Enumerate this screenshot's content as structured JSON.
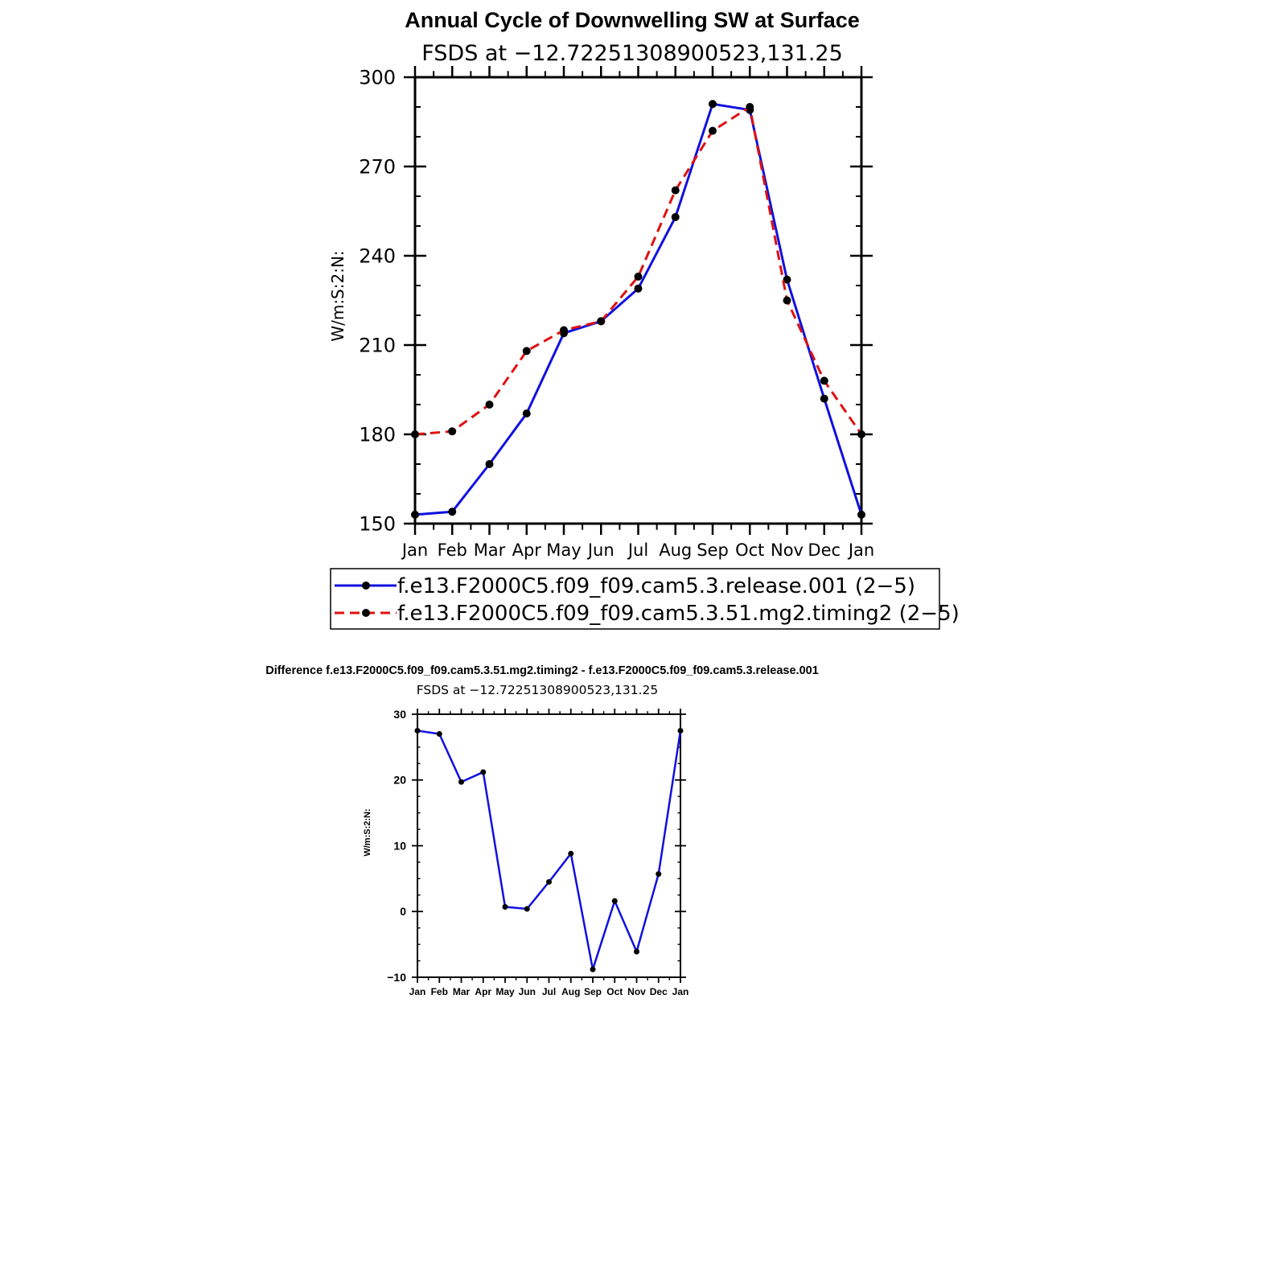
{
  "chart_data": [
    {
      "type": "line",
      "title": "Annual Cycle of Downwelling SW at Surface",
      "subtitle": "FSDS at −12.72251308900523,131.25",
      "xlabel": "",
      "ylabel": "W/m:S:2:N:",
      "categories": [
        "Jan",
        "Feb",
        "Mar",
        "Apr",
        "May",
        "Jun",
        "Jul",
        "Aug",
        "Sep",
        "Oct",
        "Nov",
        "Dec",
        "Jan"
      ],
      "ylim": [
        150,
        300
      ],
      "yticks": [
        "150",
        "180",
        "210",
        "240",
        "270",
        "300"
      ],
      "series": [
        {
          "name": "f.e13.F2000C5.f09_f09.cam5.3.release.001 (2−5)",
          "color": "#1010e0",
          "dash": "solid",
          "values": [
            153,
            154,
            170,
            187,
            214,
            218,
            229,
            253,
            291,
            289,
            232,
            192,
            153
          ]
        },
        {
          "name": "f.e13.F2000C5.f09_f09.cam5.3.51.mg2.timing2 (2−5)",
          "color": "#e01010",
          "dash": "dashed",
          "values": [
            180,
            181,
            190,
            208,
            215,
            218,
            233,
            262,
            282,
            290,
            225,
            198,
            180
          ]
        }
      ],
      "legend_position": "below"
    },
    {
      "type": "line",
      "title": "Difference f.e13.F2000C5.f09_f09.cam5.3.51.mg2.timing2 - f.e13.F2000C5.f09_f09.cam5.3.release.001",
      "subtitle": "FSDS at −12.72251308900523,131.25",
      "xlabel": "",
      "ylabel": "W/m:S:2:N:",
      "categories": [
        "Jan",
        "Feb",
        "Mar",
        "Apr",
        "May",
        "Jun",
        "Jul",
        "Aug",
        "Sep",
        "Oct",
        "Nov",
        "Dec",
        "Jan"
      ],
      "ylim": [
        -10,
        30
      ],
      "yticks": [
        "−10",
        "0",
        "10",
        "20",
        "30"
      ],
      "series": [
        {
          "color": "#1010e0",
          "dash": "solid",
          "values": [
            27.5,
            27,
            19.7,
            21.2,
            0.7,
            0.4,
            4.5,
            8.8,
            -8.8,
            1.6,
            -6.1,
            5.7,
            27.5
          ]
        }
      ]
    }
  ]
}
